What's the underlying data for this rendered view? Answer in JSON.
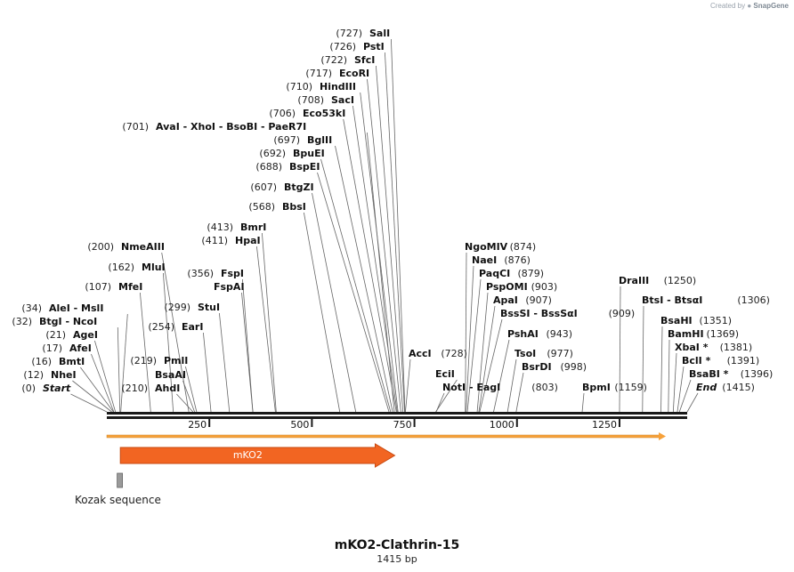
{
  "credit": {
    "prefix": "Created by",
    "brand": "SnapGene"
  },
  "sequence": {
    "name": "mKO2-Clathrin-15",
    "length_label": "1415 bp",
    "length": 1415
  },
  "colors": {
    "feature": "#f26522",
    "feature_stroke": "#c84b12",
    "orf": "#f7a13a",
    "kozak": "#9a9a9a",
    "backbone": "#1a1a1a"
  },
  "axis_ticks": [
    {
      "value": 250,
      "label": "250"
    },
    {
      "value": 500,
      "label": "500"
    },
    {
      "value": 750,
      "label": "750"
    },
    {
      "value": 1000,
      "label": "1000"
    },
    {
      "value": 1250,
      "label": "1250"
    }
  ],
  "features": [
    {
      "name": "mKO2",
      "start": 33,
      "end": 702,
      "type": "cds"
    },
    {
      "name": "Kozak sequence",
      "start": 23,
      "end": 33,
      "type": "regulatory"
    }
  ],
  "orf": {
    "start": 1,
    "end": 1415
  },
  "sites": [
    {
      "label": "Start",
      "pos_label": "(0)",
      "bp": 0,
      "italic": true
    },
    {
      "label": "NheI",
      "pos_label": "(12)",
      "bp": 12
    },
    {
      "label": "BmtI",
      "pos_label": "(16)",
      "bp": 16
    },
    {
      "label": "AfeI",
      "pos_label": "(17)",
      "bp": 17
    },
    {
      "label": "AgeI",
      "pos_label": "(21)",
      "bp": 21
    },
    {
      "label": "BtgI  -  NcoI",
      "pos_label": "(32)",
      "bp": 32
    },
    {
      "label": "AleI  -  MslI",
      "pos_label": "(34)",
      "bp": 34
    },
    {
      "label": "MfeI",
      "pos_label": "(107)",
      "bp": 107
    },
    {
      "label": "MluI",
      "pos_label": "(162)",
      "bp": 162
    },
    {
      "label": "NmeAIII",
      "pos_label": "(200)",
      "bp": 200
    },
    {
      "label": "AhdI",
      "pos_label": "(210)",
      "bp": 210,
      "pos_first": true
    },
    {
      "label": "BsaAI",
      "pos_label": "",
      "bp": 214
    },
    {
      "label": "PmlI",
      "pos_label": "(219)",
      "bp": 219
    },
    {
      "label": "EarI",
      "pos_label": "(254)",
      "bp": 254
    },
    {
      "label": "StuI",
      "pos_label": "(299)",
      "bp": 299
    },
    {
      "label": "FspAI",
      "pos_label": "",
      "bp": 356
    },
    {
      "label": "FspI",
      "pos_label": "(356)",
      "bp": 356
    },
    {
      "label": "HpaI",
      "pos_label": "(411)",
      "bp": 411
    },
    {
      "label": "BmrI",
      "pos_label": "(413)",
      "bp": 413
    },
    {
      "label": "BbsI",
      "pos_label": "(568)",
      "bp": 568
    },
    {
      "label": "BtgZI",
      "pos_label": "(607)",
      "bp": 607
    },
    {
      "label": "BspEI",
      "pos_label": "(688)",
      "bp": 688
    },
    {
      "label": "BpuEI",
      "pos_label": "(692)",
      "bp": 692
    },
    {
      "label": "BglII",
      "pos_label": "(697)",
      "bp": 697
    },
    {
      "label": "AvaI  -  XhoI  -  BsoBI  -  PaeR7I",
      "pos_label": "(701)",
      "bp": 701
    },
    {
      "label": "Eco53kI",
      "pos_label": "(706)",
      "bp": 706
    },
    {
      "label": "SacI",
      "pos_label": "(708)",
      "bp": 708
    },
    {
      "label": "HindIII",
      "pos_label": "(710)",
      "bp": 710
    },
    {
      "label": "EcoRI",
      "pos_label": "(717)",
      "bp": 717
    },
    {
      "label": "SfcI",
      "pos_label": "(722)",
      "bp": 722
    },
    {
      "label": "PstI",
      "pos_label": "(726)",
      "bp": 726
    },
    {
      "label": "SalI",
      "pos_label": "(727)",
      "bp": 727
    },
    {
      "label": "AccI",
      "pos_label": "(728)",
      "bp": 728,
      "pos_after": true
    },
    {
      "label": "EciI",
      "pos_label": "",
      "bp": 802
    },
    {
      "label": "NotI  -  EagI",
      "pos_label": "(803)",
      "bp": 803,
      "pos_after": true
    },
    {
      "label": "NgoMIV",
      "pos_label": "(874)",
      "bp": 874,
      "pos_after": true
    },
    {
      "label": "NaeI",
      "pos_label": "(876)",
      "bp": 876,
      "pos_after": true
    },
    {
      "label": "PaqCI",
      "pos_label": "(879)",
      "bp": 879,
      "pos_after": true
    },
    {
      "label": "PspOMI",
      "pos_label": "(903)",
      "bp": 903,
      "pos_after": true
    },
    {
      "label": "ApaI",
      "pos_label": "(907)",
      "bp": 907,
      "pos_after": true
    },
    {
      "label": "BssSI  -  BssSαI",
      "pos_label": "(909)",
      "bp": 909,
      "pos_after": true
    },
    {
      "label": "PshAI",
      "pos_label": "(943)",
      "bp": 943,
      "pos_after": true
    },
    {
      "label": "TsoI",
      "pos_label": "(977)",
      "bp": 977,
      "pos_after": true
    },
    {
      "label": "BsrDI",
      "pos_label": "(998)",
      "bp": 998,
      "pos_after": true
    },
    {
      "label": "BpmI",
      "pos_label": "(1159)",
      "bp": 1159,
      "pos_after": true
    },
    {
      "label": "DraIII",
      "pos_label": "(1250)",
      "bp": 1250,
      "pos_after": true
    },
    {
      "label": "BtsI  -  BtsαI",
      "pos_label": "(1306)",
      "bp": 1306,
      "pos_after": true
    },
    {
      "label": "BsaHI",
      "pos_label": "(1351)",
      "bp": 1351,
      "pos_after": true
    },
    {
      "label": "BamHI",
      "pos_label": "(1369)",
      "bp": 1369,
      "pos_after": true
    },
    {
      "label": "XbaI *",
      "pos_label": "(1381)",
      "bp": 1381,
      "pos_after": true
    },
    {
      "label": "BclI *",
      "pos_label": "(1391)",
      "bp": 1391,
      "pos_after": true
    },
    {
      "label": "BsaBI *",
      "pos_label": "(1396)",
      "bp": 1396,
      "pos_after": true
    },
    {
      "label": "End",
      "pos_label": "(1415)",
      "bp": 1415,
      "pos_after": true,
      "italic": true
    }
  ]
}
